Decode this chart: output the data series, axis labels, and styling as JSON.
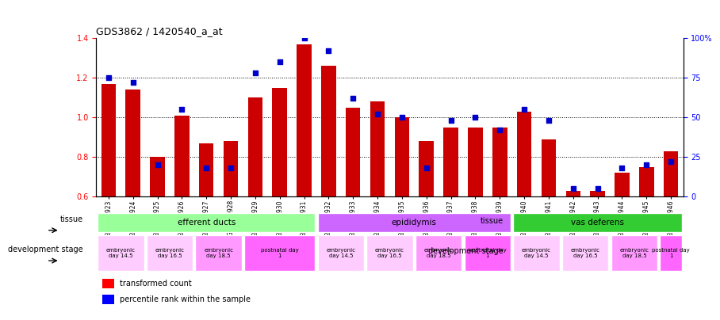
{
  "title": "GDS3862 / 1420540_a_at",
  "samples": [
    "GSM560923",
    "GSM560924",
    "GSM560925",
    "GSM560926",
    "GSM560927",
    "GSM560928",
    "GSM560929",
    "GSM560930",
    "GSM560931",
    "GSM560932",
    "GSM560933",
    "GSM560934",
    "GSM560935",
    "GSM560936",
    "GSM560937",
    "GSM560938",
    "GSM560939",
    "GSM560940",
    "GSM560941",
    "GSM560942",
    "GSM560943",
    "GSM560944",
    "GSM560945",
    "GSM560946"
  ],
  "transformed_count": [
    1.17,
    1.14,
    0.8,
    1.01,
    0.87,
    0.88,
    1.1,
    1.15,
    1.37,
    1.26,
    1.05,
    1.08,
    1.0,
    0.88,
    0.95,
    0.95,
    0.95,
    1.03,
    0.89,
    0.63,
    0.63,
    0.72,
    0.75,
    0.83
  ],
  "percentile_rank": [
    75,
    72,
    20,
    55,
    18,
    18,
    78,
    85,
    100,
    92,
    62,
    52,
    50,
    18,
    48,
    50,
    42,
    55,
    48,
    5,
    5,
    18,
    20,
    22
  ],
  "ymin": 0.6,
  "ymax": 1.4,
  "y2min": 0,
  "y2max": 100,
  "bar_color": "#cc0000",
  "dot_color": "#0000cc",
  "grid_color": "#000000",
  "tissue_groups": [
    {
      "label": "efferent ducts",
      "start": 0,
      "end": 9,
      "color": "#99ff99"
    },
    {
      "label": "epididymis",
      "start": 9,
      "end": 17,
      "color": "#cc66ff"
    },
    {
      "label": "vas deferens",
      "start": 17,
      "end": 24,
      "color": "#33cc33"
    }
  ],
  "dev_stage_groups": [
    {
      "label": "embryonic\nday 14.5",
      "start": 0,
      "end": 2,
      "color": "#ffccff"
    },
    {
      "label": "embryonic\nday 16.5",
      "start": 2,
      "end": 4,
      "color": "#ffccff"
    },
    {
      "label": "embryonic\nday 18.5",
      "start": 4,
      "end": 6,
      "color": "#ff99ff"
    },
    {
      "label": "postnatal day\n1",
      "start": 6,
      "end": 9,
      "color": "#ff66ff"
    },
    {
      "label": "embryonic\nday 14.5",
      "start": 9,
      "end": 11,
      "color": "#ffccff"
    },
    {
      "label": "embryonic\nday 16.5",
      "start": 11,
      "end": 13,
      "color": "#ffccff"
    },
    {
      "label": "embryonic\nday 18.5",
      "start": 13,
      "end": 15,
      "color": "#ff99ff"
    },
    {
      "label": "postnatal day\n1",
      "start": 15,
      "end": 17,
      "color": "#ff66ff"
    },
    {
      "label": "embryonic\nday 14.5",
      "start": 17,
      "end": 19,
      "color": "#ffccff"
    },
    {
      "label": "embryonic\nday 16.5",
      "start": 19,
      "end": 21,
      "color": "#ffccff"
    },
    {
      "label": "embryonic\nday 18.5",
      "start": 21,
      "end": 23,
      "color": "#ff99ff"
    },
    {
      "label": "postnatal day\n1",
      "start": 23,
      "end": 24,
      "color": "#ff66ff"
    }
  ],
  "legend_transformed": "transformed count",
  "legend_percentile": "percentile rank within the sample"
}
